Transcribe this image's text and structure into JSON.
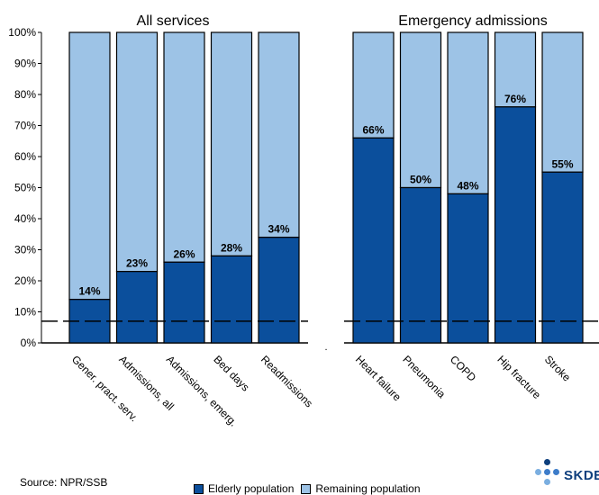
{
  "chart_data": {
    "type": "bar",
    "stacked": true,
    "y_axis": {
      "ylim": [
        0,
        100
      ],
      "ticks": [
        "0%",
        "10%",
        "20%",
        "30%",
        "40%",
        "50%",
        "60%",
        "70%",
        "80%",
        "90%",
        "100%"
      ]
    },
    "reference_line": {
      "value": 7,
      "style": "dashed"
    },
    "panels": [
      {
        "title": "All services",
        "categories": [
          "Gener. pract. serv.",
          "Admissions, all",
          "Admissions, emerg.",
          "Bed days",
          "Readmissions"
        ],
        "values": [
          14,
          23,
          26,
          28,
          34
        ],
        "value_labels": [
          "14%",
          "23%",
          "26%",
          "28%",
          "34%"
        ]
      },
      {
        "title": "Emergency admissions",
        "categories": [
          "Heart failure",
          "Pneumonia",
          "COPD",
          "Hip fracture",
          "Stroke"
        ],
        "values": [
          66,
          50,
          48,
          76,
          55
        ],
        "value_labels": [
          "66%",
          "50%",
          "48%",
          "76%",
          "55%"
        ]
      }
    ],
    "series": [
      {
        "name": "Elderly population",
        "color": "#0b4f9c"
      },
      {
        "name": "Remaining population",
        "color": "#9dc3e6"
      }
    ],
    "grid": false,
    "legend_position": "bottom"
  },
  "source_text": "Source: NPR/SSB",
  "logo": {
    "text": "SKDE",
    "dot_colors": [
      "#0e3f7d",
      "#3d7cc9",
      "#7aaee0"
    ]
  }
}
